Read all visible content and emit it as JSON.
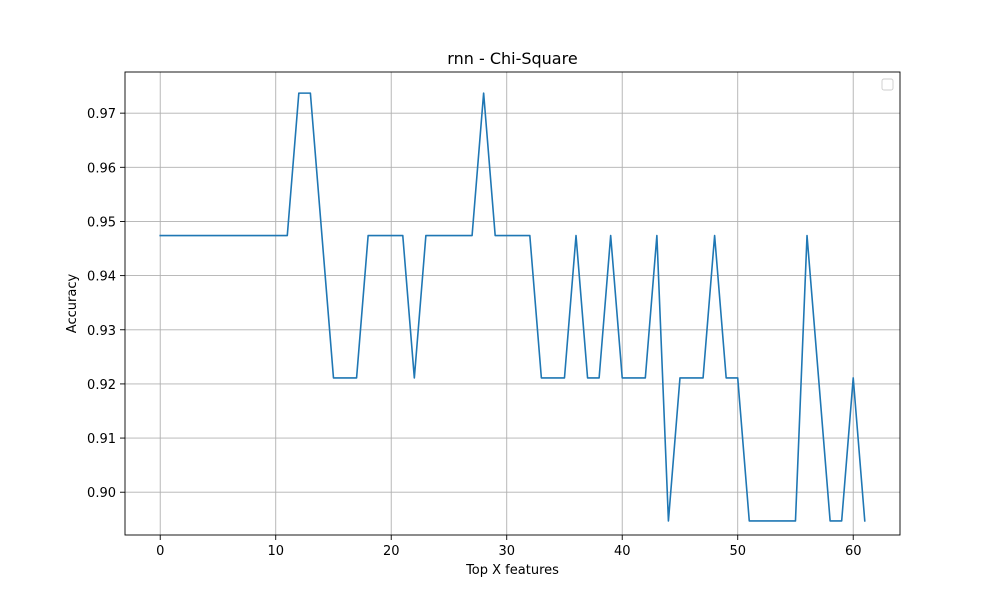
{
  "chart_data": {
    "type": "line",
    "title": "rnn - Chi-Square",
    "xlabel": "Top X features",
    "ylabel": "Accuracy",
    "xlim": [
      -3.05,
      64.05
    ],
    "ylim": [
      0.8921,
      0.9776
    ],
    "xticks": [
      0,
      10,
      20,
      30,
      40,
      50,
      60
    ],
    "yticks": [
      0.9,
      0.91,
      0.92,
      0.93,
      0.94,
      0.95,
      0.96,
      0.97
    ],
    "ytick_labels": [
      "0.90",
      "0.91",
      "0.92",
      "0.93",
      "0.94",
      "0.95",
      "0.96",
      "0.97"
    ],
    "grid": true,
    "legend": "top-right (empty)",
    "series": [
      {
        "color": "#1f77b4",
        "x": [
          0,
          1,
          2,
          3,
          4,
          5,
          6,
          7,
          8,
          9,
          10,
          11,
          12,
          13,
          14,
          15,
          16,
          17,
          18,
          19,
          20,
          21,
          22,
          23,
          24,
          25,
          26,
          27,
          28,
          29,
          30,
          31,
          32,
          33,
          34,
          35,
          36,
          37,
          38,
          39,
          40,
          41,
          42,
          43,
          44,
          45,
          46,
          47,
          48,
          49,
          50,
          51,
          52,
          53,
          54,
          55,
          56,
          57,
          58,
          59,
          60,
          61
        ],
        "values": [
          0.9474,
          0.9474,
          0.9474,
          0.9474,
          0.9474,
          0.9474,
          0.9474,
          0.9474,
          0.9474,
          0.9474,
          0.9474,
          0.9474,
          0.9737,
          0.9737,
          0.9474,
          0.9211,
          0.9211,
          0.9211,
          0.9474,
          0.9474,
          0.9474,
          0.9474,
          0.9211,
          0.9474,
          0.9474,
          0.9474,
          0.9474,
          0.9474,
          0.9737,
          0.9474,
          0.9474,
          0.9474,
          0.9474,
          0.9211,
          0.9211,
          0.9211,
          0.9474,
          0.9211,
          0.9211,
          0.9474,
          0.9211,
          0.9211,
          0.9211,
          0.9474,
          0.8947,
          0.9211,
          0.9211,
          0.9211,
          0.9474,
          0.9211,
          0.9211,
          0.8947,
          0.8947,
          0.8947,
          0.8947,
          0.8947,
          0.9474,
          0.9211,
          0.8947,
          0.8947,
          0.9211,
          0.8947
        ]
      }
    ]
  }
}
